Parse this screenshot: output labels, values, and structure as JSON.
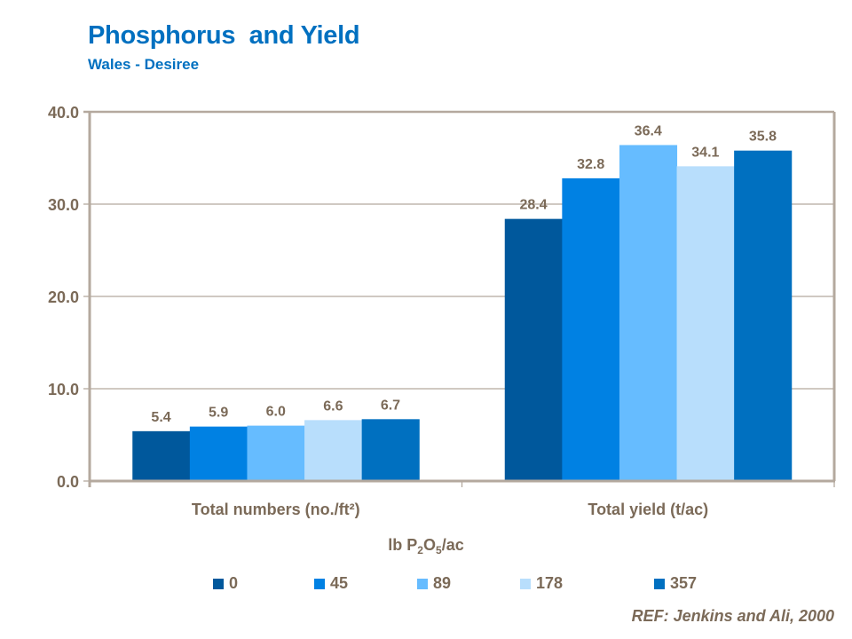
{
  "header": {
    "title": "Phosphorus  and Yield",
    "subtitle": "Wales - Desiree"
  },
  "chart_data": {
    "type": "bar",
    "title": "Phosphorus and Yield",
    "subtitle": "Wales - Desiree",
    "categories": [
      "Total numbers (no./ft²)",
      "Total yield (t/ac)"
    ],
    "xlabel_parts": {
      "prefix": "lb P",
      "sub1": "2",
      "mid": "O",
      "sub2": "5",
      "suffix": "/ac"
    },
    "xlabel": "lb P2O5/ac",
    "ylabel": "",
    "ylim": [
      0,
      40
    ],
    "yticks": [
      "0.0",
      "10.0",
      "20.0",
      "30.0",
      "40.0"
    ],
    "ytick_values": [
      0,
      10,
      20,
      30,
      40
    ],
    "grid": true,
    "legend_position": "bottom",
    "series": [
      {
        "name": "0",
        "color": "#00589C",
        "values": [
          5.4,
          28.4
        ],
        "labels": [
          "5.4",
          "28.4"
        ]
      },
      {
        "name": "45",
        "color": "#0081E3",
        "values": [
          5.9,
          32.8
        ],
        "labels": [
          "5.9",
          "32.8"
        ]
      },
      {
        "name": "89",
        "color": "#66BCFF",
        "values": [
          6.0,
          36.4
        ],
        "labels": [
          "6.0",
          "36.4"
        ]
      },
      {
        "name": "178",
        "color": "#B8DEFC",
        "values": [
          6.6,
          34.1
        ],
        "labels": [
          "6.6",
          "34.1"
        ]
      },
      {
        "name": "357",
        "color": "#0070C0",
        "values": [
          6.7,
          35.8
        ],
        "labels": [
          "6.7",
          "35.8"
        ]
      }
    ]
  },
  "footer": {
    "reference": "REF: Jenkins and Ali, 2000"
  }
}
